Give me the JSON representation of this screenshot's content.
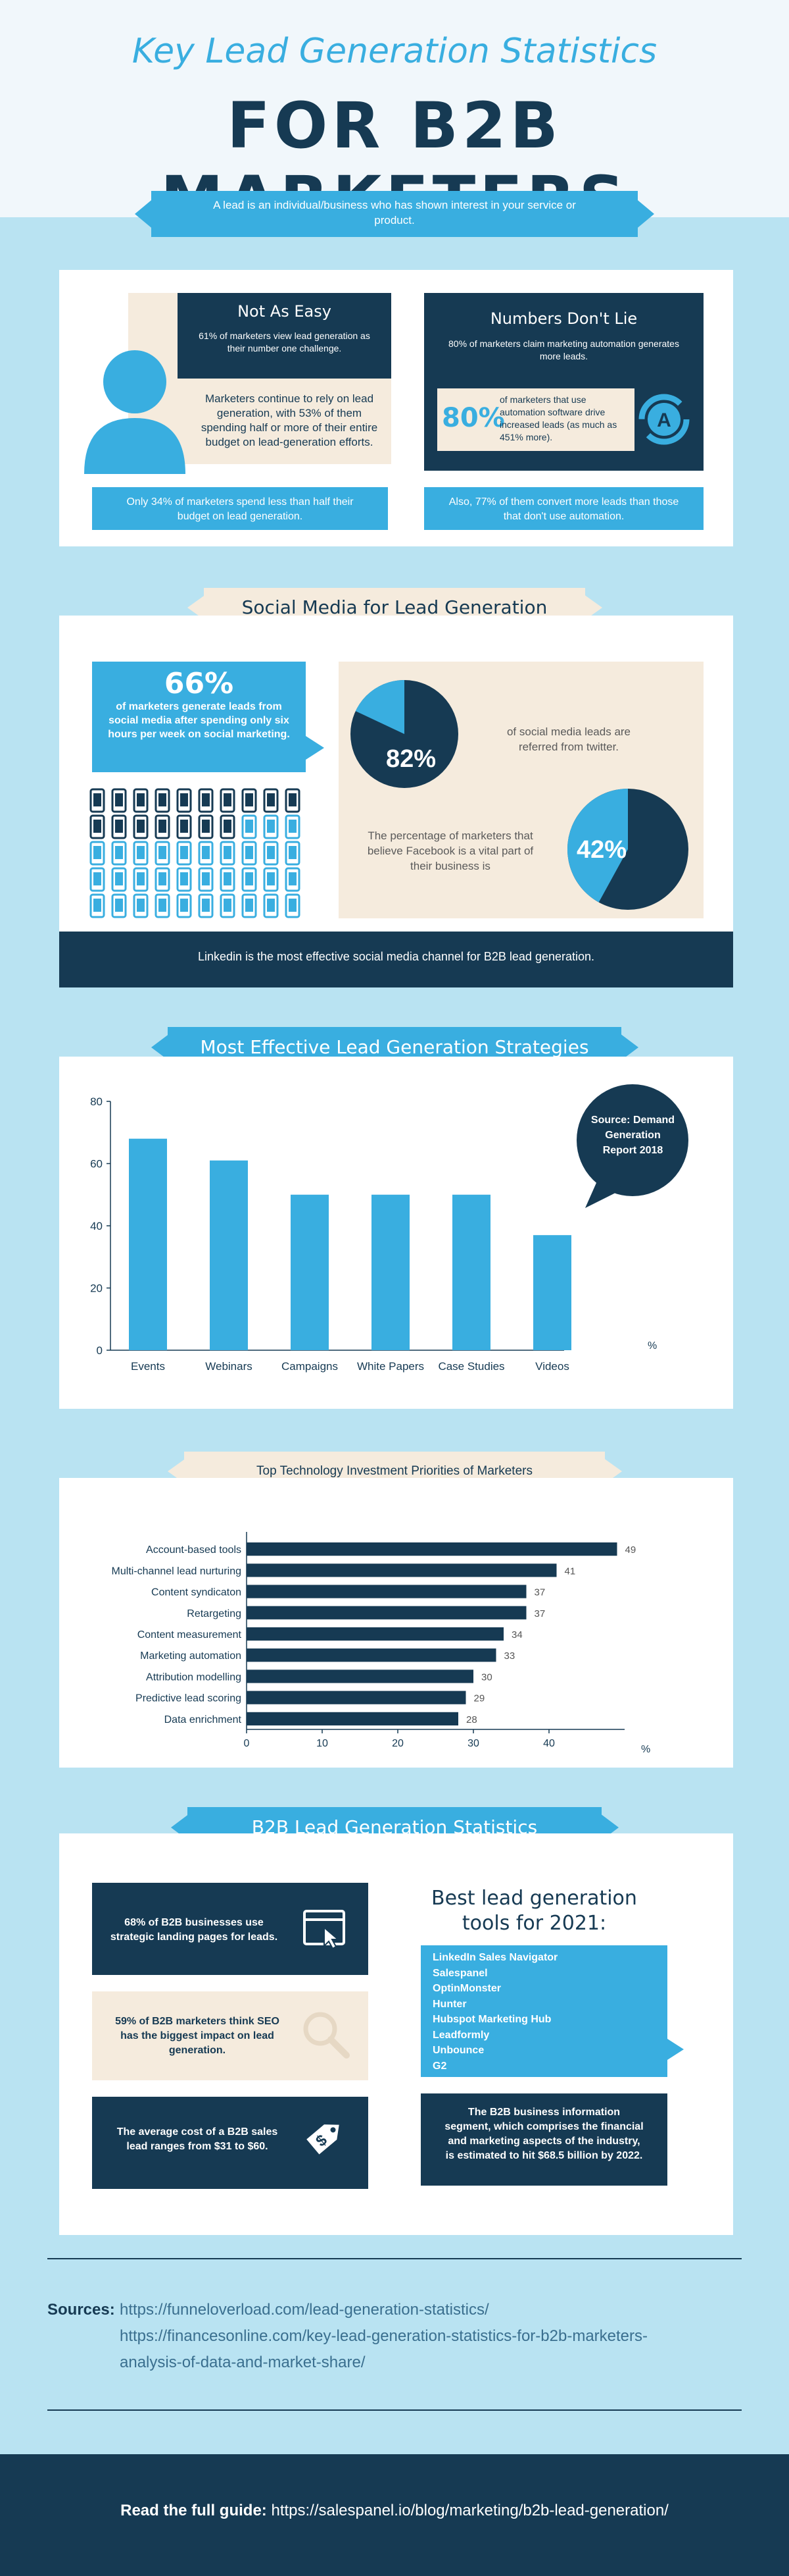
{
  "header": {
    "title_top": "Key Lead Generation Statistics",
    "title_main": "FOR B2B MARKETERS",
    "intro": "A lead is an individual/business who has shown interest in your service or product."
  },
  "section1": {
    "not_as_easy": {
      "heading": "Not As Easy",
      "stat": "61% of marketers view lead generation as their number one challenge.",
      "body": "Marketers continue to rely on lead generation, with 53% of them spending half or more of their entire budget on lead-generation efforts.",
      "footer": "Only 34% of marketers spend less than half their budget on lead generation."
    },
    "numbers_dont_lie": {
      "heading": "Numbers Don't Lie",
      "stat": "80% of marketers claim marketing automation generates more leads.",
      "pct": "80%",
      "pct_text": "of marketers that use automation software drive increased leads (as much as 451% more).",
      "icon_letter": "A",
      "footer": "Also, 77% of them convert more leads than those that don't use automation."
    }
  },
  "social": {
    "ribbon": "Social Media for Lead Generation",
    "pct66": "66%",
    "pct66_text": "of marketers generate leads from social media after spending only six hours per week on social marketing.",
    "pct82": "82%",
    "pct82_text": "of social media leads are referred from twitter.",
    "pct42": "42%",
    "pct42_text": "The percentage of marketers that believe Facebook is a vital part of their business is",
    "linkedin": "Linkedin is the most effective social media channel for B2B lead generation.",
    "phones_total": 50,
    "phones_highlight": 33
  },
  "strategies": {
    "ribbon": "Most Effective Lead Generation Strategies",
    "source": "Source: Demand Generation Report 2018",
    "unit": "%"
  },
  "technology": {
    "ribbon": "Top Technology Investment Priorities of Marketers",
    "unit": "%"
  },
  "chart_data": [
    {
      "type": "bar",
      "categories": [
        "Events",
        "Webinars",
        "Campaigns",
        "White Papers",
        "Case Studies",
        "Videos"
      ],
      "values": [
        68,
        61,
        50,
        50,
        50,
        37
      ],
      "title": "Most Effective Lead Generation Strategies",
      "xlabel": "",
      "ylabel": "%",
      "ylim": [
        0,
        80
      ],
      "yticks": [
        0,
        20,
        40,
        60,
        80
      ],
      "color": "#39aee0"
    },
    {
      "type": "bar",
      "orientation": "horizontal",
      "categories": [
        "Account-based tools",
        "Multi-channel lead nurturing",
        "Content syndicaton",
        "Retargeting",
        "Content measurement",
        "Marketing automation",
        "Attribution modelling",
        "Predictive lead scoring",
        "Data enrichment"
      ],
      "values": [
        49,
        41,
        37,
        37,
        34,
        33,
        30,
        29,
        28
      ],
      "title": "Top Technology Investment Priorities of Marketers",
      "xlabel": "%",
      "ylabel": "",
      "xlim": [
        0,
        50
      ],
      "xticks": [
        0,
        10,
        20,
        30,
        40
      ],
      "color": "#163a53"
    }
  ],
  "b2b": {
    "ribbon": "B2B Lead Generation Statistics",
    "fact1": "68% of B2B businesses use strategic landing pages for leads.",
    "fact2": "59% of B2B marketers think SEO has the biggest impact on lead generation.",
    "fact3": "The average cost of a B2B sales lead ranges from $31 to $60.",
    "tools_heading": "Best lead generation tools for 2021:",
    "tools": [
      "LinkedIn Sales Navigator",
      "Salespanel",
      "OptinMonster",
      "Hunter",
      "Hubspot Marketing Hub",
      "Leadformly",
      "Unbounce",
      "G2"
    ],
    "segment": "The B2B business information segment, which comprises the financial and marketing aspects of the industry, is estimated to hit $68.5 billion by 2022.",
    "tag_symbol": "$"
  },
  "sources": {
    "label": "Sources:",
    "line1": "https://funneloverload.com/lead-generation-statistics/",
    "line2": "https://financesonline.com/key-lead-generation-statistics-for-b2b-marketers-",
    "line3": "analysis-of-data-and-market-share/"
  },
  "footer": {
    "label": "Read the full guide:",
    "url": "https://salespanel.io/blog/marketing/b2b-lead-generation/"
  },
  "colors": {
    "navy": "#163a53",
    "blue": "#39aee0",
    "cream": "#f5ebdd",
    "light_bg": "#b9e3f2"
  }
}
